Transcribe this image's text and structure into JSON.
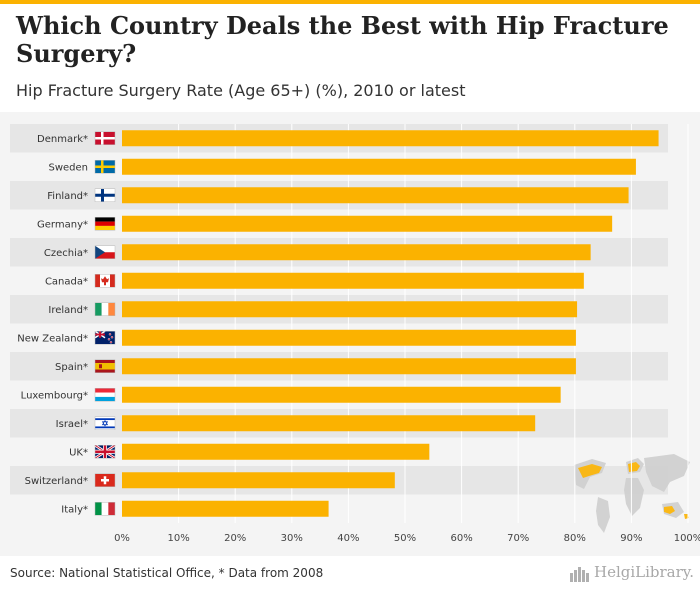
{
  "header": {
    "title": "Which Country Deals the Best with Hip Fracture Surgery?",
    "subtitle": "Hip Fracture Surgery Rate (Age 65+) (%), 2010 or latest"
  },
  "footer": {
    "source": "Source: National Statistical Office, * Data from 2008",
    "brand": "HelgiLibrary."
  },
  "colors": {
    "bar": "#fbb200",
    "accent": "#fbb200",
    "panel": "#f4f4f4",
    "stripe": "#e6e6e6"
  },
  "chart_data": {
    "type": "bar",
    "orientation": "horizontal",
    "title": "Which Country Deals the Best with Hip Fracture Surgery?",
    "subtitle": "Hip Fracture Surgery Rate (Age 65+) (%), 2010 or latest",
    "xlabel": "",
    "ylabel": "",
    "xlim": [
      0,
      100
    ],
    "x_ticks": [
      "0%",
      "10%",
      "20%",
      "30%",
      "40%",
      "50%",
      "60%",
      "70%",
      "80%",
      "90%",
      "100%"
    ],
    "grid": true,
    "categories": [
      "Denmark*",
      "Sweden",
      "Finland*",
      "Germany*",
      "Czechia*",
      "Canada*",
      "Ireland*",
      "New Zealand*",
      "Spain*",
      "Luxembourg*",
      "Israel*",
      "UK*",
      "Switzerland*",
      "Italy*"
    ],
    "flags": [
      "denmark-flag-icon",
      "sweden-flag-icon",
      "finland-flag-icon",
      "germany-flag-icon",
      "czechia-flag-icon",
      "canada-flag-icon",
      "ireland-flag-icon",
      "new-zealand-flag-icon",
      "spain-flag-icon",
      "luxembourg-flag-icon",
      "israel-flag-icon",
      "uk-flag-icon",
      "switzerland-flag-icon",
      "italy-flag-icon"
    ],
    "values": [
      94.8,
      90.8,
      89.5,
      86.6,
      82.8,
      81.6,
      80.4,
      80.2,
      80.2,
      77.5,
      73.0,
      54.3,
      48.2,
      36.5
    ]
  }
}
